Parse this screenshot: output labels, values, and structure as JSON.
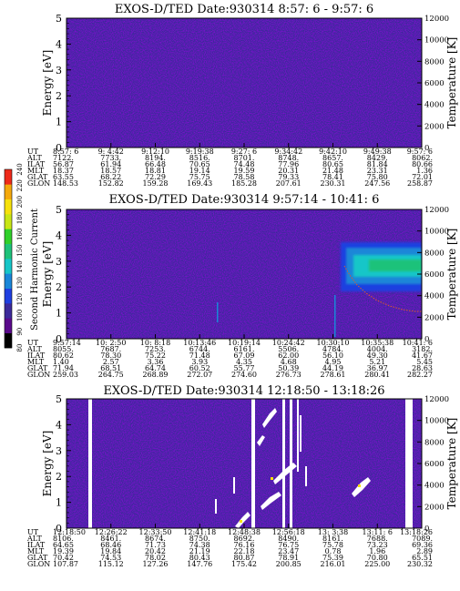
{
  "colors": {
    "background": "#3c2a9a",
    "frame": "#000000",
    "colorbar": [
      "#000000",
      "#5a0a8c",
      "#3c2a9a",
      "#1f3fe0",
      "#1a86d8",
      "#17c6c8",
      "#1ec27a",
      "#30d02a",
      "#c8e616",
      "#f6e10c",
      "#f4a90c",
      "#ee2a1a"
    ]
  },
  "colorbar": {
    "label": "Second Harmonic Current",
    "ticks": [
      "80",
      "90",
      "100",
      "120",
      "130",
      "140",
      "150",
      "160",
      "180",
      "200",
      "220",
      "240"
    ]
  },
  "chart_data": [
    {
      "type": "heatmap",
      "title": "EXOS-D/TED   Date:930314   8:57: 6 -  9:57: 6",
      "ylabel": "Energy [eV]",
      "ylim": [
        0,
        5
      ],
      "yticks": [
        "5",
        "4",
        "3",
        "2",
        "1",
        "0"
      ],
      "y2label": "Temperature [K]",
      "y2lim": [
        0,
        12000
      ],
      "y2ticks": [
        "12000",
        "10000",
        "8000",
        "6000",
        "4000",
        "2000",
        "0"
      ],
      "features": "uniform low-level background",
      "table": {
        "row_labels": [
          "UT",
          "ALT",
          "ILAT",
          "MLT",
          "GLAT",
          "GLON"
        ],
        "columns": [
          [
            "8:57: 6",
            "7122.",
            "56.87",
            "18.37",
            "63.55",
            "148.53"
          ],
          [
            "9: 4:42",
            "7733.",
            "61.94",
            "18.57",
            "68.22",
            "152.82"
          ],
          [
            "9:12:10",
            "8194.",
            "66.48",
            "18.81",
            "72.29",
            "159.28"
          ],
          [
            "9:19:38",
            "8516.",
            "70.65",
            "19.14",
            "75.75",
            "169.43"
          ],
          [
            "9:27: 6",
            "8701.",
            "74.48",
            "19.59",
            "78.58",
            "185.28"
          ],
          [
            "9:34:42",
            "8748.",
            "77.96",
            "20.31",
            "79.33",
            "207.61"
          ],
          [
            "9:42:10",
            "8657.",
            "80.65",
            "21.48",
            "78.41",
            "230.31"
          ],
          [
            "9:49:38",
            "8429.",
            "81.84",
            "23.31",
            "75.80",
            "247.56"
          ],
          [
            "9:57: 6",
            "8062.",
            "80.66",
            "1.36",
            "72.01",
            "258.87"
          ]
        ]
      }
    },
    {
      "type": "heatmap",
      "title": "EXOS-D/TED   Date:930314   9:57:14 - 10:41: 6",
      "ylabel": "Energy [eV]",
      "ylim": [
        0,
        5
      ],
      "yticks": [
        "5",
        "4",
        "3",
        "2",
        "1",
        "0"
      ],
      "y2label": "Temperature [K]",
      "y2lim": [
        0,
        12000
      ],
      "y2ticks": [
        "12000",
        "10000",
        "8000",
        "6000",
        "4000",
        "2000",
        "0"
      ],
      "features": "bright band near 2.5-3 eV after ~10:33; electron temperature trace",
      "table": {
        "row_labels": [
          "UT",
          "ALT",
          "ILAT",
          "MLT",
          "GLAT",
          "GLON"
        ],
        "columns": [
          [
            "9:57:14",
            "8055.",
            "80.62",
            "1.40",
            "71.94",
            "259.03"
          ],
          [
            "10: 2:50",
            "7687.",
            "78.30",
            "2.57",
            "68.51",
            "264.75"
          ],
          [
            "10: 8:18",
            "7253.",
            "75.22",
            "3.36",
            "64.74",
            "268.89"
          ],
          [
            "10:13:46",
            "6744.",
            "71.48",
            "3.93",
            "60.52",
            "272.07"
          ],
          [
            "10:19:14",
            "6161.",
            "67.09",
            "4.35",
            "55.77",
            "274.60"
          ],
          [
            "10:24:42",
            "5506.",
            "62.00",
            "4.68",
            "50.39",
            "276.73"
          ],
          [
            "10:30:10",
            "4784.",
            "56.10",
            "4.95",
            "44.19",
            "278.61"
          ],
          [
            "10:35:38",
            "4004.",
            "49.30",
            "5.21",
            "36.97",
            "280.41"
          ],
          [
            "10:41: 6",
            "3182.",
            "41.67",
            "5.45",
            "28.63",
            "282.27"
          ]
        ]
      }
    },
    {
      "type": "heatmap",
      "title": "EXOS-D/TED   Date:930314  12:18:50 - 13:18:26",
      "ylabel": "Energy [eV]",
      "ylim": [
        0,
        5
      ],
      "yticks": [
        "5",
        "4",
        "3",
        "2",
        "1",
        "0"
      ],
      "y2label": "Temperature [K]",
      "y2lim": [
        0,
        12000
      ],
      "y2ticks": [
        "12000",
        "10000",
        "8000",
        "6000",
        "4000",
        "2000",
        "0"
      ],
      "features": "data gaps (white columns) and scattered bright diagonal features",
      "table": {
        "row_labels": [
          "UT",
          "ALT",
          "ILAT",
          "MLT",
          "GLAT",
          "GLON"
        ],
        "columns": [
          [
            "12:18:50",
            "8106.",
            "64.65",
            "19.39",
            "70.42",
            "107.87"
          ],
          [
            "12:26:22",
            "8461.",
            "68.46",
            "19.84",
            "74.53",
            "115.12"
          ],
          [
            "12:33:50",
            "8674.",
            "71.73",
            "20.42",
            "78.02",
            "127.26"
          ],
          [
            "12:41:18",
            "8750.",
            "74.38",
            "21.19",
            "80.43",
            "147.76"
          ],
          [
            "12:48:38",
            "8692.",
            "76.16",
            "22.18",
            "80.87",
            "175.42"
          ],
          [
            "12:56:18",
            "8490.",
            "76.75",
            "23.47",
            "78.91",
            "200.85"
          ],
          [
            "13: 3:38",
            "8161.",
            "75.78",
            "0.78",
            "75.39",
            "216.01"
          ],
          [
            "13:11: 6",
            "7688.",
            "73.23",
            "1.96",
            "70.80",
            "225.00"
          ],
          [
            "13:18:26",
            "7089.",
            "69.36",
            "2.89",
            "65.51",
            "230.32"
          ]
        ]
      }
    }
  ]
}
